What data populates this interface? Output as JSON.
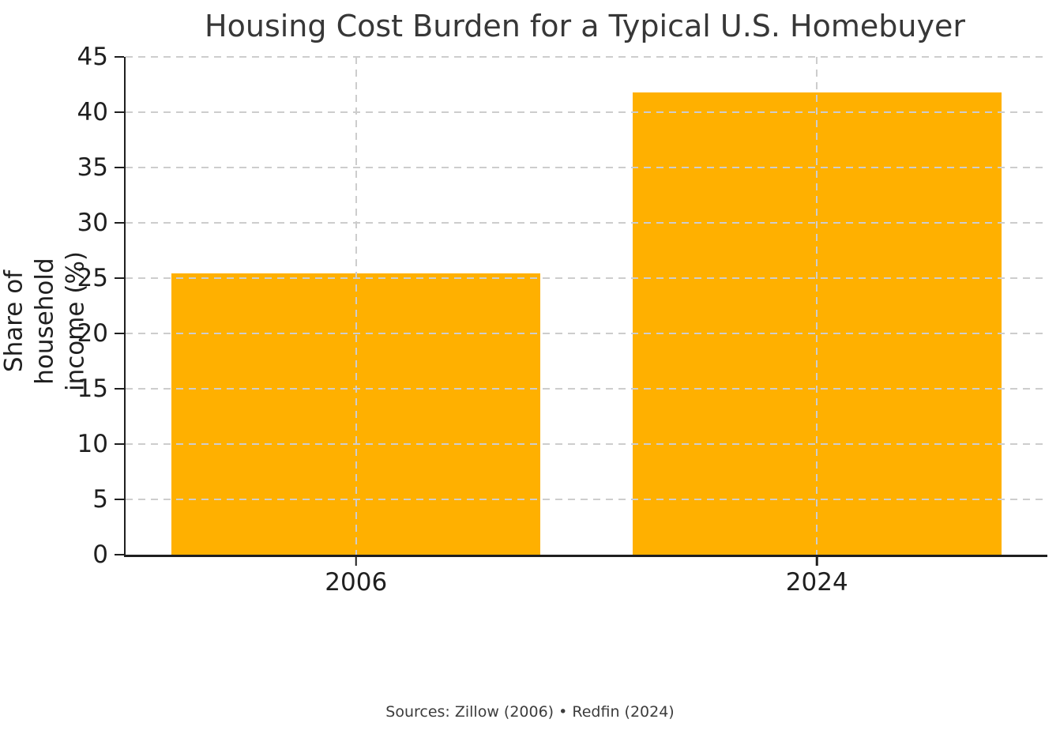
{
  "chart_data": {
    "type": "bar",
    "title": "Housing Cost Burden for a Typical U.S. Homebuyer",
    "categories": [
      "2006",
      "2024"
    ],
    "values": [
      25.4,
      41.8
    ],
    "ylabel": "Share of household income (%)",
    "ylabel_lines": [
      "Share of household",
      "income (%)"
    ],
    "yticks": [
      0,
      5,
      10,
      15,
      20,
      25,
      30,
      35,
      40,
      45
    ],
    "ylim": [
      0,
      45
    ],
    "xlabel": "",
    "bar_color": "#FFB000",
    "grid": "dashed horizontal and vertical, drawn above bars",
    "grid_color": "#cdcdcd",
    "axis_color": "#1f1f1f",
    "legend_position": "none"
  },
  "footer": {
    "text": "Sources: Zillow (2006) • Redfin (2024)"
  }
}
